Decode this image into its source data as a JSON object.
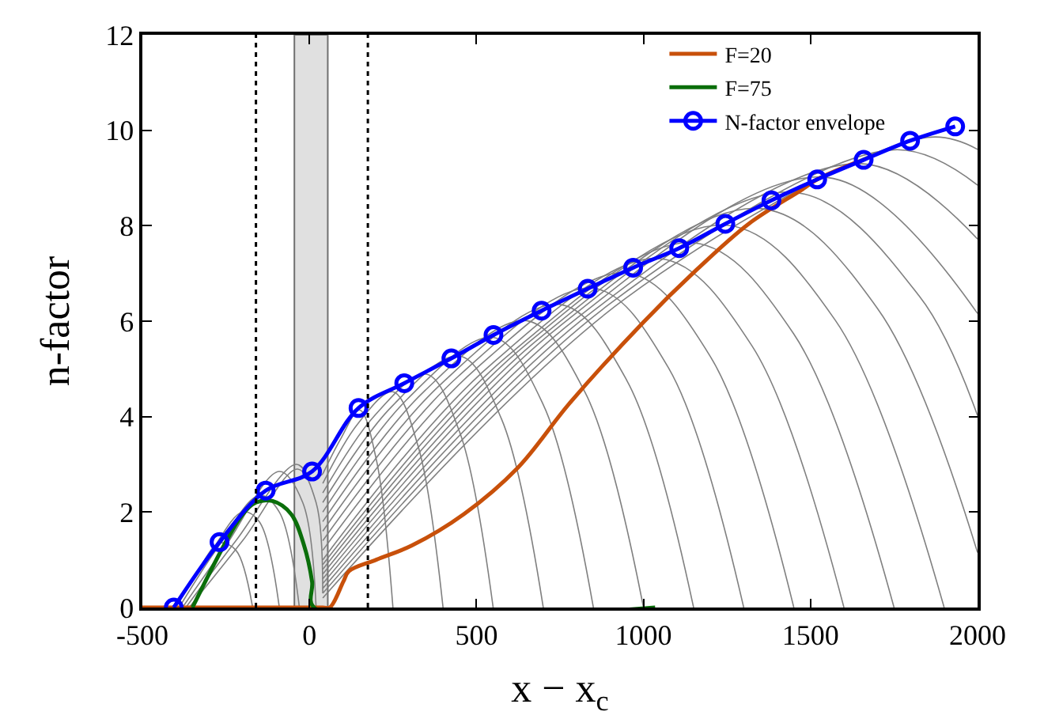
{
  "chart_data": {
    "type": "line",
    "xlabel": "x − x$_{c}$",
    "ylabel": "n-factor",
    "xlim": [
      -500,
      2000
    ],
    "xticks": [
      -500,
      0,
      500,
      1000,
      1500,
      2000
    ],
    "ylim": [
      0,
      12
    ],
    "yticks": [
      0,
      2,
      4,
      6,
      8,
      10,
      12
    ],
    "legend": "top right",
    "grid": false,
    "bands": [
      {
        "axis": "x",
        "from": -45,
        "to": 55,
        "color": "#e0e0e0"
      }
    ],
    "ref_lines": [
      {
        "axis": "x",
        "value": -160,
        "color": "#000000",
        "line_style": "dotted"
      },
      {
        "axis": "x",
        "value": 175,
        "color": "#000000",
        "line_style": "dotted"
      }
    ],
    "series": [
      {
        "color": "#808080",
        "x": [
          -410,
          -340,
          -270,
          -220,
          -170
        ],
        "values": [
          0,
          0.7,
          1.35,
          1.2,
          0
        ]
      },
      {
        "color": "#808080",
        "x": [
          -400,
          -300,
          -200,
          -150,
          -90
        ],
        "values": [
          0,
          1.1,
          2.0,
          1.8,
          0
        ]
      },
      {
        "color": "#808080",
        "x": [
          -390,
          -280,
          -150,
          -90,
          -30
        ],
        "values": [
          0,
          1.2,
          2.35,
          2.0,
          0
        ]
      },
      {
        "color": "#808080",
        "x": [
          -380,
          -250,
          -90,
          -20,
          20
        ],
        "values": [
          0,
          1.3,
          2.85,
          2.2,
          0
        ]
      },
      {
        "color": "#808080",
        "x": [
          -370,
          -220,
          -40,
          10,
          40
        ],
        "values": [
          0,
          1.4,
          3.0,
          2.7,
          2.8
        ]
      },
      {
        "color": "#808080",
        "x": [
          -360,
          -200,
          -35,
          20,
          40
        ],
        "values": [
          0,
          1.4,
          2.9,
          2.2,
          0.3
        ]
      },
      {
        "color": "#808080",
        "x": [
          40,
          95,
          150,
          200,
          250
        ],
        "values": [
          2.8,
          3.55,
          4.14,
          3.11,
          0
        ]
      },
      {
        "color": "#808080",
        "x": [
          40,
          145,
          250,
          325,
          400
        ],
        "values": [
          2.6,
          3.85,
          4.52,
          3.39,
          0
        ]
      },
      {
        "color": "#808080",
        "x": [
          40,
          195,
          350,
          450,
          550
        ],
        "values": [
          2.4,
          4.02,
          4.89,
          3.67,
          0
        ]
      },
      {
        "color": "#808080",
        "x": [
          40,
          245,
          450,
          575,
          700
        ],
        "values": [
          2.2,
          4.2,
          5.27,
          3.95,
          0
        ]
      },
      {
        "color": "#808080",
        "x": [
          40,
          295,
          550,
          700,
          850
        ],
        "values": [
          2.0,
          4.38,
          5.66,
          4.25,
          0
        ]
      },
      {
        "color": "#808080",
        "x": [
          40,
          345,
          650,
          825,
          1000
        ],
        "values": [
          1.8,
          4.54,
          6.01,
          4.51,
          0
        ]
      },
      {
        "color": "#808080",
        "x": [
          40,
          395,
          750,
          950,
          1150
        ],
        "values": [
          1.6,
          4.69,
          6.35,
          4.76,
          0
        ]
      },
      {
        "color": "#808080",
        "x": [
          40,
          445,
          850,
          1075,
          1300
        ],
        "values": [
          1.4,
          4.84,
          6.69,
          5.02,
          0
        ]
      },
      {
        "color": "#808080",
        "x": [
          40,
          495,
          950,
          1200,
          1450
        ],
        "values": [
          1.2,
          4.98,
          7.01,
          5.26,
          0
        ]
      },
      {
        "color": "#808080",
        "x": [
          40,
          545,
          1050,
          1325,
          1600
        ],
        "values": [
          1.0,
          5.1,
          7.31,
          5.48,
          0
        ]
      },
      {
        "color": "#808080",
        "x": [
          40,
          595,
          1150,
          1450,
          1750
        ],
        "values": [
          0.9,
          5.28,
          7.64,
          5.73,
          0
        ]
      },
      {
        "color": "#808080",
        "x": [
          40,
          645,
          1250,
          1575,
          1900
        ],
        "values": [
          0.8,
          5.49,
          8.01,
          6.01,
          0
        ]
      },
      {
        "color": "#808080",
        "x": [
          40,
          695,
          1350,
          1700,
          2000
        ],
        "values": [
          0.7,
          5.68,
          8.36,
          6.27,
          1.15
        ]
      },
      {
        "color": "#808080",
        "x": [
          40,
          745,
          1450,
          1825,
          2000
        ],
        "values": [
          0.6,
          5.87,
          8.7,
          6.53,
          4.02
        ]
      },
      {
        "color": "#808080",
        "x": [
          40,
          795,
          1550,
          2000
        ],
        "values": [
          0.5,
          6.03,
          9.01,
          6.16
        ]
      },
      {
        "color": "#808080",
        "x": [
          40,
          845,
          1650,
          2000
        ],
        "values": [
          0.4,
          6.19,
          9.3,
          7.72
        ]
      },
      {
        "color": "#808080",
        "x": [
          40,
          895,
          1750,
          2000
        ],
        "values": [
          0.3,
          6.34,
          9.59,
          8.85
        ]
      },
      {
        "color": "#808080",
        "x": [
          40,
          945,
          1850,
          2000
        ],
        "values": [
          0.2,
          6.47,
          9.85,
          9.6
        ]
      },
      {
        "name": "F=20",
        "color": "#c8500a",
        "x": [
          -500,
          40,
          61,
          102,
          118,
          200,
          307,
          463,
          624,
          780,
          1000,
          1158,
          1315,
          1473,
          1520,
          1645
        ],
        "values": [
          0,
          0,
          0,
          0.55,
          0.76,
          1.0,
          1.3,
          1.96,
          2.93,
          4.29,
          5.98,
          7.07,
          8.04,
          8.75,
          8.97,
          9.35
        ]
      },
      {
        "name": "F=75",
        "color": "#0a6e0a",
        "x": [
          -350,
          -200,
          -160,
          -110,
          -55,
          -16,
          8,
          14,
          1035
        ],
        "values": [
          0,
          1.95,
          2.2,
          2.23,
          1.96,
          1.3,
          0.54,
          0,
          0
        ]
      },
      {
        "name": "N-factor envelope",
        "color": "#0000ff",
        "marker": "circle",
        "x": [
          -406,
          -269,
          -131,
          8,
          147,
          284,
          425,
          551,
          695,
          833,
          969,
          1107,
          1245,
          1383,
          1520,
          1659,
          1798,
          1933
        ],
        "values": [
          0,
          1.37,
          2.45,
          2.85,
          4.18,
          4.7,
          5.22,
          5.71,
          6.22,
          6.68,
          7.12,
          7.53,
          8.04,
          8.53,
          8.97,
          9.38,
          9.78,
          10.08
        ]
      }
    ]
  }
}
